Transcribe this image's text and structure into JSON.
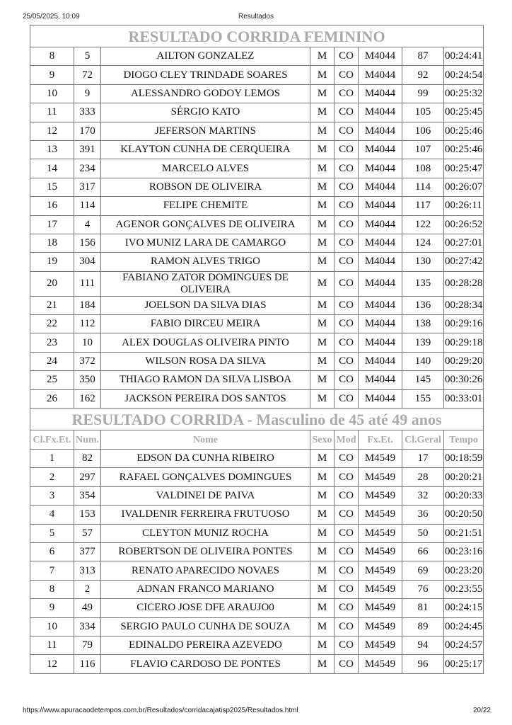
{
  "header": {
    "datetime": "25/05/2025, 10:09",
    "title": "Resultados"
  },
  "footer": {
    "url": "https://www.apuracaodetempos.com.br/Resultados/corridacajatisp2025/Resultados.html",
    "page": "20/22"
  },
  "sections": [
    {
      "title": "RESULTADO CORRIDA FEMININO",
      "columns": [],
      "rows": [
        [
          "8",
          "5",
          "AILTON GONZALEZ",
          "M",
          "CO",
          "M4044",
          "87",
          "00:24:41"
        ],
        [
          "9",
          "72",
          "DIOGO CLEY TRINDADE SOARES",
          "M",
          "CO",
          "M4044",
          "92",
          "00:24:54"
        ],
        [
          "10",
          "9",
          "ALESSANDRO GODOY LEMOS",
          "M",
          "CO",
          "M4044",
          "99",
          "00:25:32"
        ],
        [
          "11",
          "333",
          "SÉRGIO KATO",
          "M",
          "CO",
          "M4044",
          "105",
          "00:25:45"
        ],
        [
          "12",
          "170",
          "JEFERSON MARTINS",
          "M",
          "CO",
          "M4044",
          "106",
          "00:25:46"
        ],
        [
          "13",
          "391",
          "KLAYTON CUNHA DE CERQUEIRA",
          "M",
          "CO",
          "M4044",
          "107",
          "00:25:46"
        ],
        [
          "14",
          "234",
          "MARCELO ALVES",
          "M",
          "CO",
          "M4044",
          "108",
          "00:25:47"
        ],
        [
          "15",
          "317",
          "ROBSON DE OLIVEIRA",
          "M",
          "CO",
          "M4044",
          "114",
          "00:26:07"
        ],
        [
          "16",
          "114",
          "FELIPE CHEMITE",
          "M",
          "CO",
          "M4044",
          "117",
          "00:26:11"
        ],
        [
          "17",
          "4",
          "AGENOR GONÇALVES DE OLIVEIRA",
          "M",
          "CO",
          "M4044",
          "122",
          "00:26:52"
        ],
        [
          "18",
          "156",
          "IVO MUNIZ LARA DE CAMARGO",
          "M",
          "CO",
          "M4044",
          "124",
          "00:27:01"
        ],
        [
          "19",
          "304",
          "RAMON ALVES TRIGO",
          "M",
          "CO",
          "M4044",
          "130",
          "00:27:42"
        ],
        [
          "20",
          "111",
          "FABIANO ZATOR DOMINGUES DE OLIVEIRA",
          "M",
          "CO",
          "M4044",
          "135",
          "00:28:28"
        ],
        [
          "21",
          "184",
          "JOELSON DA SILVA DIAS",
          "M",
          "CO",
          "M4044",
          "136",
          "00:28:34"
        ],
        [
          "22",
          "112",
          "FABIO DIRCEU MEIRA",
          "M",
          "CO",
          "M4044",
          "138",
          "00:29:16"
        ],
        [
          "23",
          "10",
          "ALEX DOUGLAS OLIVEIRA PINTO",
          "M",
          "CO",
          "M4044",
          "139",
          "00:29:18"
        ],
        [
          "24",
          "372",
          "WILSON ROSA DA SILVA",
          "M",
          "CO",
          "M4044",
          "140",
          "00:29:20"
        ],
        [
          "25",
          "350",
          "THIAGO RAMON DA SILVA LISBOA",
          "M",
          "CO",
          "M4044",
          "145",
          "00:30:26"
        ],
        [
          "26",
          "162",
          "JACKSON PEREIRA DOS SANTOS",
          "M",
          "CO",
          "M4044",
          "155",
          "00:33:01"
        ]
      ]
    },
    {
      "title": "RESULTADO CORRIDA - Masculino de 45 até 49 anos",
      "columns": [
        "Cl.Fx.Et.",
        "Num.",
        "Nome",
        "Sexo",
        "Mod",
        "Fx.Et.",
        "Cl.Geral",
        "Tempo"
      ],
      "rows": [
        [
          "1",
          "82",
          "EDSON DA CUNHA RIBEIRO",
          "M",
          "CO",
          "M4549",
          "17",
          "00:18:59"
        ],
        [
          "2",
          "297",
          "RAFAEL GONÇALVES DOMINGUES",
          "M",
          "CO",
          "M4549",
          "28",
          "00:20:21"
        ],
        [
          "3",
          "354",
          "VALDINEI DE PAIVA",
          "M",
          "CO",
          "M4549",
          "32",
          "00:20:33"
        ],
        [
          "4",
          "153",
          "IVALDENIR FERREIRA FRUTUOSO",
          "M",
          "CO",
          "M4549",
          "36",
          "00:20:50"
        ],
        [
          "5",
          "57",
          "CLEYTON MUNIZ ROCHA",
          "M",
          "CO",
          "M4549",
          "50",
          "00:21:51"
        ],
        [
          "6",
          "377",
          "ROBERTSON DE OLIVEIRA PONTES",
          "M",
          "CO",
          "M4549",
          "66",
          "00:23:16"
        ],
        [
          "7",
          "313",
          "RENATO APARECIDO NOVAES",
          "M",
          "CO",
          "M4549",
          "69",
          "00:23:20"
        ],
        [
          "8",
          "2",
          "ADNAN FRANCO MARIANO",
          "M",
          "CO",
          "M4549",
          "76",
          "00:23:55"
        ],
        [
          "9",
          "49",
          "CICERO JOSE DFE ARAUJO0",
          "M",
          "CO",
          "M4549",
          "81",
          "00:24:15"
        ],
        [
          "10",
          "334",
          "SERGIO PAULO CUNHA DE SOUZA",
          "M",
          "CO",
          "M4549",
          "89",
          "00:24:45"
        ],
        [
          "11",
          "79",
          "EDINALDO PEREIRA AZEVEDO",
          "M",
          "CO",
          "M4549",
          "94",
          "00:24:57"
        ],
        [
          "12",
          "116",
          "FLAVIO CARDOSO DE PONTES",
          "M",
          "CO",
          "M4549",
          "96",
          "00:25:17"
        ]
      ]
    }
  ]
}
